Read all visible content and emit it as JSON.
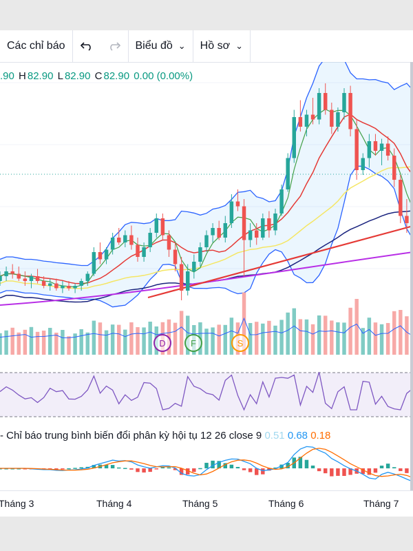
{
  "toolbar": {
    "indicators_label": "Các chỉ báo",
    "undo_icon": "undo-icon",
    "redo_icon": "redo-icon",
    "chart_label": "Biểu đồ",
    "profile_label": "Hồ sơ"
  },
  "ohlc": {
    "open": ".90",
    "high_label": "H",
    "high": "82.90",
    "low_label": "L",
    "low": "82.90",
    "close_label": "C",
    "close": "82.90",
    "change": "0.00 (0.00%)"
  },
  "markers": [
    "D",
    "F",
    "S"
  ],
  "macd": {
    "label": "- Chỉ báo trung bình biến đổi phân kỳ hội tụ 12 26 close 9",
    "macd_value": "0.51",
    "signal_value": "0.68",
    "hist_value": "0.18"
  },
  "xaxis": {
    "ticks": [
      "Tháng 3",
      "Tháng 4",
      "Tháng 5",
      "Tháng 6",
      "Tháng 7"
    ]
  },
  "colors": {
    "up": "#26a69a",
    "down": "#ef5350",
    "bollinger": "#2962ff",
    "ma_long": "#1a237e",
    "ma_yellow": "#f5e663",
    "ma_purple": "#b82ee6",
    "trendline": "#e53935",
    "rsi": "#7e57c2",
    "macd": "#2196f3",
    "signal": "#ff6d00"
  },
  "chart_data": {
    "type": "candlestick",
    "candles": [
      [
        80.2,
        80.6,
        80.0,
        80.4
      ],
      [
        80.4,
        80.8,
        80.2,
        80.6
      ],
      [
        80.6,
        80.9,
        80.3,
        80.5
      ],
      [
        80.5,
        80.8,
        80.2,
        80.3
      ],
      [
        80.3,
        80.6,
        80.0,
        80.2
      ],
      [
        80.2,
        80.5,
        79.9,
        80.4
      ],
      [
        80.4,
        80.7,
        80.1,
        80.2
      ],
      [
        80.2,
        80.4,
        79.9,
        80.0
      ],
      [
        80.0,
        80.3,
        79.8,
        80.1
      ],
      [
        80.1,
        80.3,
        79.8,
        79.9
      ],
      [
        79.9,
        80.2,
        79.7,
        80.0
      ],
      [
        80.0,
        80.2,
        79.8,
        79.9
      ],
      [
        79.9,
        80.1,
        79.7,
        80.0
      ],
      [
        80.0,
        80.3,
        79.8,
        80.2
      ],
      [
        80.2,
        80.6,
        80.0,
        80.5
      ],
      [
        80.5,
        81.6,
        80.4,
        81.4
      ],
      [
        81.4,
        81.8,
        80.9,
        81.1
      ],
      [
        81.1,
        81.6,
        80.9,
        81.5
      ],
      [
        81.5,
        82.2,
        81.3,
        82.0
      ],
      [
        82.0,
        82.4,
        81.7,
        81.8
      ],
      [
        81.8,
        82.3,
        81.6,
        82.1
      ],
      [
        82.1,
        82.5,
        81.5,
        81.7
      ],
      [
        81.7,
        82.0,
        81.0,
        81.2
      ],
      [
        81.2,
        81.8,
        81.0,
        81.6
      ],
      [
        81.6,
        82.4,
        81.4,
        82.2
      ],
      [
        82.2,
        83.0,
        82.0,
        82.8
      ],
      [
        82.8,
        83.0,
        81.9,
        82.1
      ],
      [
        82.1,
        82.3,
        81.2,
        81.5
      ],
      [
        81.5,
        81.8,
        80.6,
        80.9
      ],
      [
        80.9,
        81.2,
        79.4,
        79.8
      ],
      [
        79.8,
        80.9,
        79.6,
        80.6
      ],
      [
        80.6,
        81.3,
        80.3,
        81.0
      ],
      [
        81.0,
        81.8,
        80.8,
        81.6
      ],
      [
        81.6,
        82.3,
        81.4,
        82.1
      ],
      [
        82.1,
        82.6,
        81.8,
        82.4
      ],
      [
        82.4,
        82.7,
        81.9,
        82.0
      ],
      [
        82.0,
        82.9,
        81.8,
        82.6
      ],
      [
        82.6,
        83.8,
        82.4,
        83.5
      ],
      [
        83.5,
        84.0,
        83.1,
        83.3
      ],
      [
        83.3,
        83.6,
        80.4,
        81.9
      ],
      [
        81.9,
        82.6,
        81.6,
        82.3
      ],
      [
        82.3,
        82.6,
        81.7,
        82.0
      ],
      [
        82.0,
        83.0,
        81.9,
        82.8
      ],
      [
        82.8,
        83.1,
        82.0,
        82.3
      ],
      [
        82.3,
        83.2,
        82.1,
        83.0
      ],
      [
        83.0,
        84.2,
        82.9,
        84.0
      ],
      [
        84.0,
        85.5,
        83.9,
        85.3
      ],
      [
        85.3,
        87.3,
        85.1,
        87.0
      ],
      [
        87.0,
        87.7,
        86.4,
        86.6
      ],
      [
        86.6,
        87.3,
        86.2,
        87.1
      ],
      [
        87.1,
        87.8,
        86.7,
        86.9
      ],
      [
        86.9,
        88.2,
        86.7,
        88.0
      ],
      [
        88.0,
        88.4,
        87.1,
        87.3
      ],
      [
        87.3,
        87.6,
        86.3,
        86.6
      ],
      [
        86.6,
        87.4,
        86.4,
        87.2
      ],
      [
        87.2,
        88.2,
        86.9,
        88.0
      ],
      [
        88.0,
        88.3,
        86.2,
        86.5
      ],
      [
        86.5,
        86.9,
        84.4,
        84.8
      ],
      [
        84.8,
        85.5,
        84.6,
        85.3
      ],
      [
        85.3,
        86.3,
        84.9,
        86.0
      ],
      [
        86.0,
        86.3,
        85.4,
        85.6
      ],
      [
        85.6,
        86.1,
        85.0,
        85.9
      ],
      [
        85.9,
        86.2,
        85.2,
        85.4
      ],
      [
        85.4,
        85.7,
        84.1,
        84.4
      ],
      [
        84.4,
        84.6,
        82.6,
        82.9
      ],
      [
        82.9,
        83.6,
        82.2,
        82.6
      ],
      [
        82.6,
        83.0,
        82.3,
        82.9
      ]
    ]
  }
}
